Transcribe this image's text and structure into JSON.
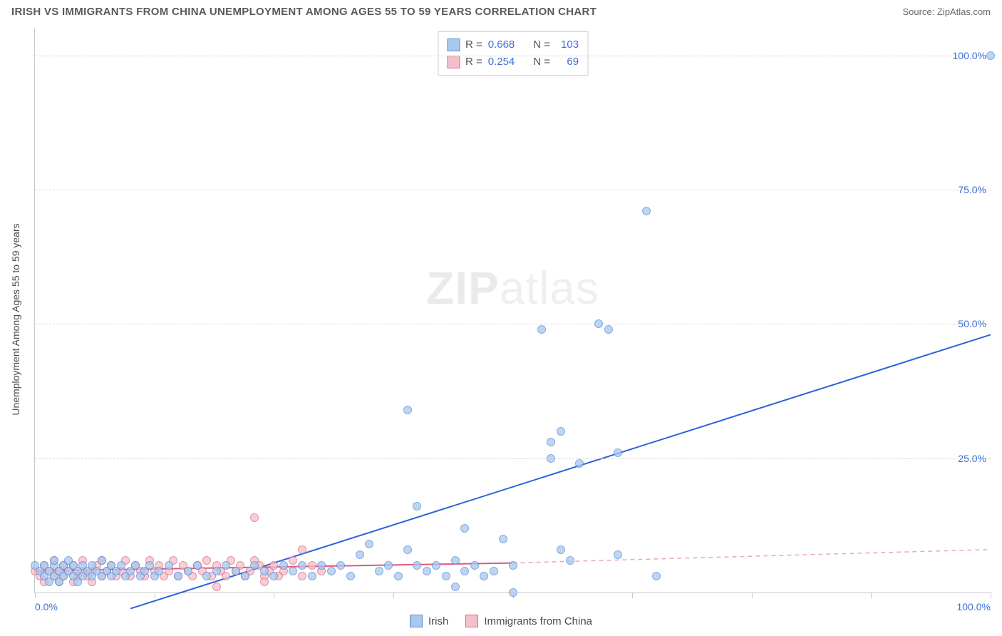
{
  "header": {
    "title": "IRISH VS IMMIGRANTS FROM CHINA UNEMPLOYMENT AMONG AGES 55 TO 59 YEARS CORRELATION CHART",
    "source": "Source: ZipAtlas.com"
  },
  "watermark": {
    "zip": "ZIP",
    "atlas": "atlas"
  },
  "chart": {
    "type": "scatter",
    "ylabel": "Unemployment Among Ages 55 to 59 years",
    "xlim": [
      0,
      100
    ],
    "ylim": [
      0,
      105
    ],
    "xticks": [
      0,
      12.5,
      25,
      37.5,
      50,
      62.5,
      75,
      87.5,
      100
    ],
    "xtick_labels": {
      "first": "0.0%",
      "last": "100.0%"
    },
    "yticks": [
      25,
      50,
      75,
      100
    ],
    "ytick_labels": [
      "25.0%",
      "50.0%",
      "75.0%",
      "100.0%"
    ],
    "grid_color": "#d8d8d8",
    "background_color": "#ffffff",
    "axis_color": "#c8c8c8",
    "label_color": "#3b6fd6",
    "point_radius": 6,
    "series": {
      "irish": {
        "label": "Irish",
        "fill": "#a9c8ee",
        "stroke": "#5a8fd6",
        "opacity": 0.75,
        "R": "0.668",
        "N": "103",
        "trend": {
          "x1": 10,
          "y1": -3,
          "x2": 100,
          "y2": 48,
          "color": "#2f62d9",
          "width": 2,
          "dash": "none"
        },
        "points": [
          [
            0,
            5
          ],
          [
            0.5,
            4
          ],
          [
            1,
            3
          ],
          [
            1,
            5
          ],
          [
            1.5,
            2
          ],
          [
            1.5,
            4
          ],
          [
            2,
            3
          ],
          [
            2,
            5
          ],
          [
            2,
            6
          ],
          [
            2.5,
            2
          ],
          [
            2.5,
            4
          ],
          [
            3,
            3
          ],
          [
            3,
            5
          ],
          [
            3.5,
            4
          ],
          [
            3.5,
            6
          ],
          [
            4,
            3
          ],
          [
            4,
            5
          ],
          [
            4.5,
            2
          ],
          [
            4.5,
            4
          ],
          [
            5,
            3
          ],
          [
            5,
            5
          ],
          [
            5.5,
            4
          ],
          [
            6,
            3
          ],
          [
            6,
            5
          ],
          [
            6.5,
            4
          ],
          [
            7,
            3
          ],
          [
            7,
            6
          ],
          [
            7.5,
            4
          ],
          [
            8,
            3
          ],
          [
            8,
            5
          ],
          [
            8.5,
            4
          ],
          [
            9,
            5
          ],
          [
            9.5,
            3
          ],
          [
            10,
            4
          ],
          [
            10.5,
            5
          ],
          [
            11,
            3
          ],
          [
            11.5,
            4
          ],
          [
            12,
            5
          ],
          [
            12.5,
            3
          ],
          [
            13,
            4
          ],
          [
            14,
            5
          ],
          [
            15,
            3
          ],
          [
            16,
            4
          ],
          [
            17,
            5
          ],
          [
            18,
            3
          ],
          [
            19,
            4
          ],
          [
            20,
            5
          ],
          [
            21,
            4
          ],
          [
            22,
            3
          ],
          [
            23,
            5
          ],
          [
            24,
            4
          ],
          [
            25,
            3
          ],
          [
            26,
            5
          ],
          [
            27,
            4
          ],
          [
            28,
            5
          ],
          [
            29,
            3
          ],
          [
            30,
            5
          ],
          [
            31,
            4
          ],
          [
            32,
            5
          ],
          [
            33,
            3
          ],
          [
            34,
            7
          ],
          [
            35,
            9
          ],
          [
            36,
            4
          ],
          [
            37,
            5
          ],
          [
            38,
            3
          ],
          [
            39,
            8
          ],
          [
            40,
            5
          ],
          [
            40,
            16
          ],
          [
            41,
            4
          ],
          [
            42,
            5
          ],
          [
            43,
            3
          ],
          [
            44,
            6
          ],
          [
            44,
            1
          ],
          [
            45,
            4
          ],
          [
            45,
            12
          ],
          [
            46,
            5
          ],
          [
            47,
            3
          ],
          [
            48,
            4
          ],
          [
            49,
            10
          ],
          [
            50,
            5
          ],
          [
            50,
            0
          ],
          [
            39,
            34
          ],
          [
            53,
            49
          ],
          [
            54,
            28
          ],
          [
            54,
            25
          ],
          [
            55,
            8
          ],
          [
            55,
            30
          ],
          [
            56,
            6
          ],
          [
            57,
            24
          ],
          [
            59,
            50
          ],
          [
            60,
            49
          ],
          [
            61,
            7
          ],
          [
            61,
            26
          ],
          [
            65,
            3
          ],
          [
            64,
            71
          ],
          [
            100,
            100
          ]
        ]
      },
      "china": {
        "label": "Immigrants from China",
        "fill": "#f3bfca",
        "stroke": "#e06a88",
        "opacity": 0.75,
        "R": "0.254",
        "N": "69",
        "trend_solid": {
          "x1": 0,
          "y1": 4,
          "x2": 50,
          "y2": 5.5,
          "color": "#e05a7a",
          "width": 2
        },
        "trend_dash": {
          "x1": 50,
          "y1": 5.5,
          "x2": 100,
          "y2": 8,
          "color": "#e8a9b8",
          "width": 1.5,
          "dash": "6 5"
        },
        "points": [
          [
            0,
            4
          ],
          [
            0.5,
            3
          ],
          [
            1,
            5
          ],
          [
            1,
            2
          ],
          [
            1.5,
            4
          ],
          [
            2,
            3
          ],
          [
            2,
            6
          ],
          [
            2.5,
            4
          ],
          [
            2.5,
            2
          ],
          [
            3,
            5
          ],
          [
            3,
            3
          ],
          [
            3.5,
            4
          ],
          [
            4,
            5
          ],
          [
            4,
            2
          ],
          [
            4.5,
            3
          ],
          [
            5,
            4
          ],
          [
            5,
            6
          ],
          [
            5.5,
            3
          ],
          [
            6,
            4
          ],
          [
            6,
            2
          ],
          [
            6.5,
            5
          ],
          [
            7,
            3
          ],
          [
            7,
            6
          ],
          [
            7.5,
            4
          ],
          [
            8,
            5
          ],
          [
            8.5,
            3
          ],
          [
            9,
            4
          ],
          [
            9.5,
            6
          ],
          [
            10,
            3
          ],
          [
            10.5,
            5
          ],
          [
            11,
            4
          ],
          [
            11.5,
            3
          ],
          [
            12,
            6
          ],
          [
            12.5,
            4
          ],
          [
            13,
            5
          ],
          [
            13.5,
            3
          ],
          [
            14,
            4
          ],
          [
            14.5,
            6
          ],
          [
            15,
            3
          ],
          [
            15.5,
            5
          ],
          [
            16,
            4
          ],
          [
            16.5,
            3
          ],
          [
            17,
            5
          ],
          [
            17.5,
            4
          ],
          [
            18,
            6
          ],
          [
            18.5,
            3
          ],
          [
            19,
            1
          ],
          [
            19,
            5
          ],
          [
            19.5,
            4
          ],
          [
            20,
            3
          ],
          [
            20.5,
            6
          ],
          [
            21,
            4
          ],
          [
            21.5,
            5
          ],
          [
            22,
            3
          ],
          [
            22.5,
            4
          ],
          [
            23,
            6
          ],
          [
            23,
            14
          ],
          [
            23.5,
            5
          ],
          [
            24,
            3
          ],
          [
            24.5,
            4
          ],
          [
            25,
            5
          ],
          [
            25.5,
            3
          ],
          [
            26,
            4
          ],
          [
            27,
            6
          ],
          [
            28,
            3
          ],
          [
            28,
            8
          ],
          [
            29,
            5
          ],
          [
            30,
            4
          ],
          [
            24,
            2
          ]
        ]
      }
    }
  },
  "bottomLegend": {
    "items": [
      {
        "key": "irish",
        "label": "Irish"
      },
      {
        "key": "china",
        "label": "Immigrants from China"
      }
    ]
  }
}
